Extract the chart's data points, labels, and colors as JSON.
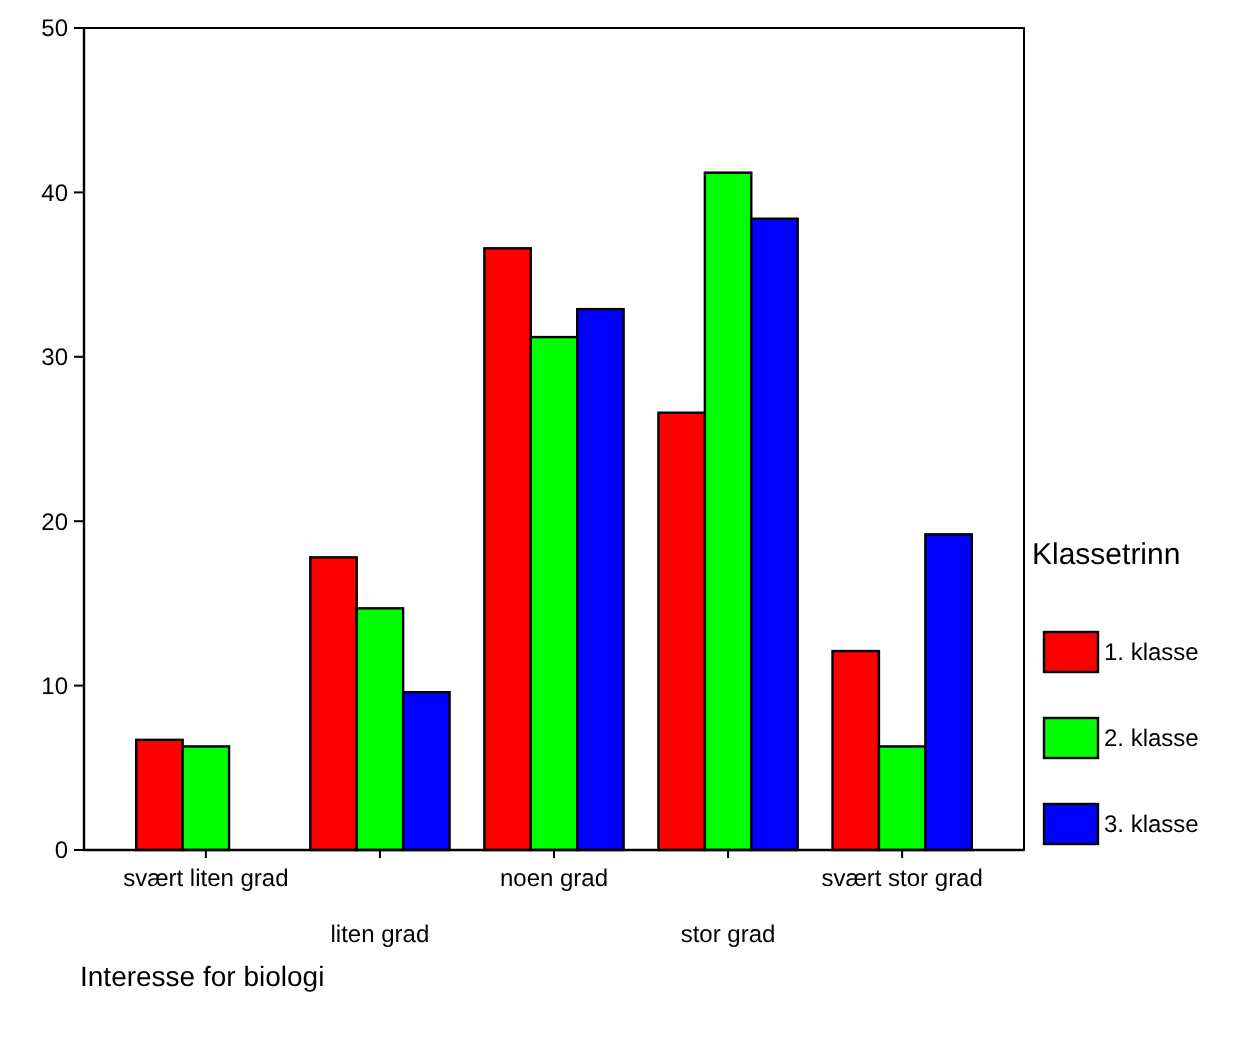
{
  "chart_data": {
    "type": "bar",
    "xlabel": "Interesse for biologi",
    "legend_title": "Klassetrinn",
    "legend": "right",
    "categories": [
      "svært liten grad",
      "liten grad",
      "noen grad",
      "stor grad",
      "svært stor grad"
    ],
    "series": [
      {
        "name": "1. klasse",
        "color": "#ff0000",
        "values": [
          6.7,
          17.8,
          36.6,
          26.6,
          12.1
        ]
      },
      {
        "name": "2. klasse",
        "color": "#00ff00",
        "values": [
          6.3,
          14.7,
          31.2,
          41.2,
          6.3
        ]
      },
      {
        "name": "3. klasse",
        "color": "#0000ff",
        "values": [
          0,
          9.6,
          32.9,
          38.4,
          19.2
        ]
      }
    ],
    "ylim": [
      0,
      50
    ],
    "yticks": [
      0,
      10,
      20,
      30,
      40,
      50
    ],
    "grid": false
  }
}
